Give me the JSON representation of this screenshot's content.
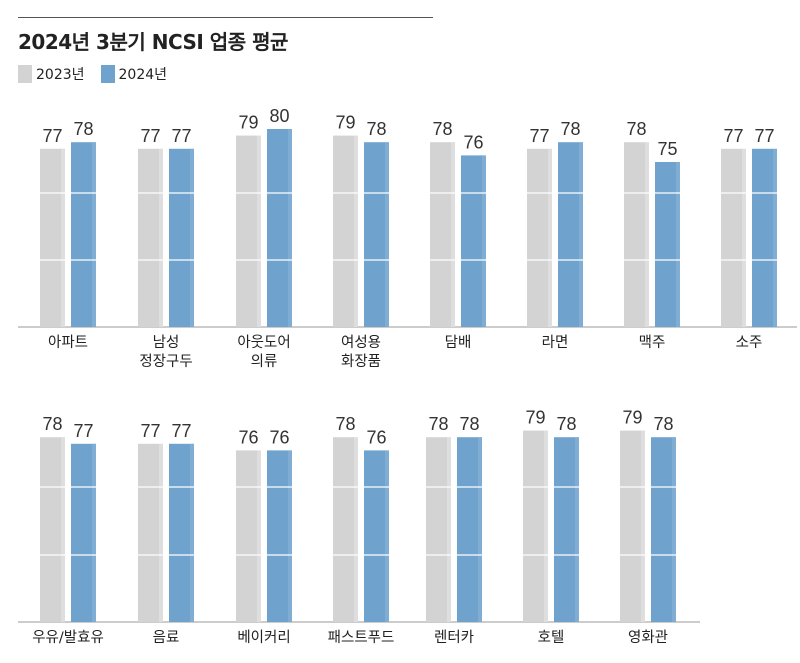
{
  "title": "2024년 3분기 NCSI 업종 평균",
  "legend": [
    {
      "label": "2023년",
      "color": "#d3d3d3"
    },
    {
      "label": "2024년",
      "color": "#6fa3cd"
    }
  ],
  "chart_data": {
    "type": "bar",
    "title": "2024년 3분기 NCSI 업종 평균",
    "series_names": [
      "2023년",
      "2024년"
    ],
    "panels": [
      {
        "categories": [
          [
            "아파트"
          ],
          [
            "남성",
            "정장구두"
          ],
          [
            "아웃도어",
            "의류"
          ],
          [
            "여성용",
            "화장품"
          ],
          [
            "담배"
          ],
          [
            "라면"
          ],
          [
            "맥주"
          ],
          [
            "소주"
          ]
        ],
        "series": [
          {
            "name": "2023년",
            "values": [
              77,
              77,
              79,
              79,
              78,
              77,
              78,
              77
            ]
          },
          {
            "name": "2024년",
            "values": [
              78,
              77,
              80,
              78,
              76,
              78,
              75,
              77
            ]
          }
        ]
      },
      {
        "categories": [
          [
            "우유/발효유"
          ],
          [
            "음료"
          ],
          [
            "베이커리"
          ],
          [
            "패스트푸드"
          ],
          [
            "렌터카"
          ],
          [
            "호텔"
          ],
          [
            "영화관"
          ]
        ],
        "series": [
          {
            "name": "2023년",
            "values": [
              78,
              77,
              76,
              78,
              78,
              79,
              79
            ]
          },
          {
            "name": "2024년",
            "values": [
              77,
              77,
              76,
              76,
              78,
              78,
              78
            ]
          }
        ]
      }
    ]
  }
}
